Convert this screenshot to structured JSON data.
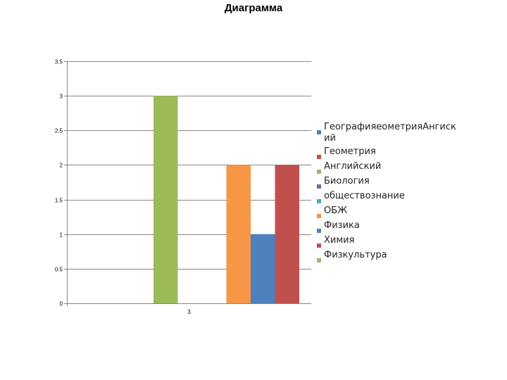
{
  "chart_data": {
    "type": "bar",
    "title": "Диаграмма",
    "categories": [
      "3"
    ],
    "ylim": [
      0,
      3.5
    ],
    "yticks": [
      "0",
      "0.5",
      "1",
      "1.5",
      "2",
      "2.5",
      "3",
      "3.5"
    ],
    "grid": true,
    "legend_position": "right",
    "series": [
      {
        "name": "ГеографияеометрияАнгиский",
        "values": [
          0
        ],
        "color": "#4f81bd"
      },
      {
        "name": "Геометрия",
        "values": [
          0
        ],
        "color": "#c0504d"
      },
      {
        "name": "Английский",
        "values": [
          3
        ],
        "color": "#9bbb59"
      },
      {
        "name": "Биология",
        "values": [
          0
        ],
        "color": "#8064a2"
      },
      {
        "name": "обществознание",
        "values": [
          0
        ],
        "color": "#4bacc6"
      },
      {
        "name": "ОБЖ",
        "values": [
          2
        ],
        "color": "#f79646"
      },
      {
        "name": "Физика",
        "values": [
          1
        ],
        "color": "#4f81bd"
      },
      {
        "name": "Химия",
        "values": [
          2
        ],
        "color": "#c0504d"
      },
      {
        "name": "Физкультура",
        "values": [
          0
        ],
        "color": "#9bbb59"
      }
    ]
  }
}
